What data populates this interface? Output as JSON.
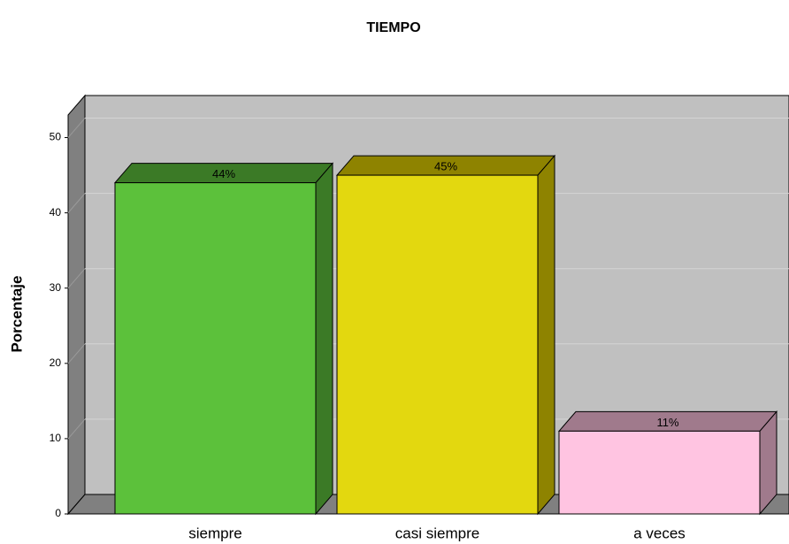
{
  "chart_data": {
    "type": "bar3d",
    "title": "TIEMPO",
    "y_label": "Porcentaje",
    "categories": [
      "siempre",
      "casi siempre",
      "a veces"
    ],
    "values": [
      44,
      45,
      11
    ],
    "value_labels": [
      "44%",
      "45%",
      "11%"
    ],
    "colors": [
      "#5cc13b",
      "#e3d80f",
      "#ffc4e1"
    ],
    "side_colors": [
      "#3b7a26",
      "#8e8300",
      "#a07a8c"
    ],
    "ylim": [
      0,
      53
    ],
    "yticks": [
      0,
      10,
      20,
      30,
      40,
      50
    ],
    "grid": true
  }
}
